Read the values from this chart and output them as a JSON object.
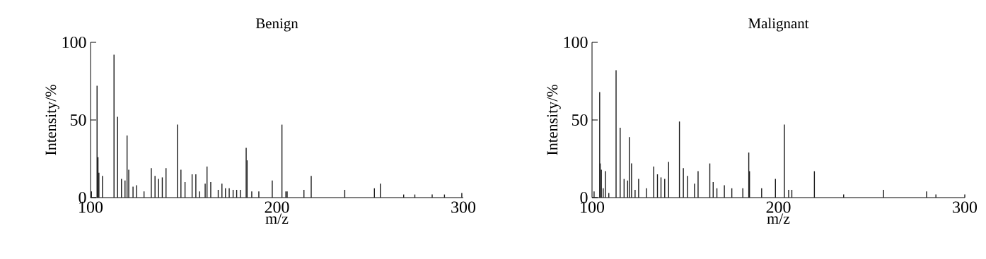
{
  "chart_data": [
    {
      "type": "bar",
      "title": "Benign",
      "xlabel": "m/z",
      "ylabel": "Intensity/%",
      "color": "#1a1a1a",
      "x": [
        100.5,
        103.5,
        104,
        104.5,
        106.4,
        112.6,
        114.5,
        116.6,
        118.5,
        119.6,
        120.5,
        122.8,
        124.7,
        128.7,
        132.6,
        134.6,
        136.5,
        138.5,
        140.5,
        146.6,
        148.5,
        150.7,
        154.5,
        156.5,
        158.5,
        161.5,
        162.5,
        164.5,
        168.5,
        170.5,
        172.4,
        174.4,
        176.5,
        178.4,
        180.4,
        183.5,
        184,
        186.5,
        190.3,
        197.5,
        202.7,
        204.8,
        205.5,
        214.5,
        218.4,
        236.4,
        252.3,
        255.5,
        268,
        274,
        283.3,
        289.9,
        299.2
      ],
      "values": [
        4,
        72,
        26,
        16,
        14,
        92,
        52,
        12,
        11,
        40,
        18,
        7,
        8,
        4,
        19,
        14,
        12,
        13,
        19,
        47,
        18,
        10,
        15,
        15,
        4,
        9,
        20,
        10,
        5,
        9,
        6,
        6,
        5,
        5,
        5,
        32,
        24,
        4,
        4,
        11,
        47,
        4,
        4,
        5,
        14,
        5,
        6,
        9,
        2,
        2,
        2,
        2,
        3
      ],
      "xlim": [
        100,
        300
      ],
      "xticks": [
        100,
        200,
        300
      ],
      "ylim": [
        0,
        100
      ],
      "yticks": [
        0,
        50,
        100
      ]
    },
    {
      "type": "bar",
      "title": "Malignant",
      "xlabel": "m/z",
      "ylabel": "Intensity/%",
      "color": "#1a1a1a",
      "x": [
        101.1,
        104.1,
        104.4,
        105,
        106,
        107.2,
        109,
        112.9,
        115.1,
        117.2,
        119.1,
        120,
        121.2,
        123.1,
        125,
        129.2,
        133.1,
        135.1,
        137,
        139,
        141.1,
        146.9,
        149,
        151.2,
        155,
        156.9,
        163.2,
        165,
        167,
        171,
        175,
        180.9,
        184.1,
        184.5,
        191,
        198.4,
        203.2,
        205.5,
        207.2,
        219.3,
        235,
        256.4,
        279.5,
        284.5,
        300
      ],
      "values": [
        4,
        68,
        22,
        18,
        6,
        17,
        3,
        82,
        45,
        12,
        11,
        39,
        22,
        5,
        12,
        6,
        20,
        15,
        13,
        12,
        23,
        49,
        19,
        14,
        9,
        17,
        22,
        10,
        6,
        8,
        6,
        6,
        29,
        17,
        6,
        12,
        47,
        5,
        5,
        17,
        2,
        5,
        4,
        2,
        2
      ],
      "xlim": [
        100,
        300
      ],
      "xticks": [
        100,
        200,
        300
      ],
      "ylim": [
        0,
        100
      ],
      "yticks": [
        0,
        50,
        100
      ]
    }
  ]
}
